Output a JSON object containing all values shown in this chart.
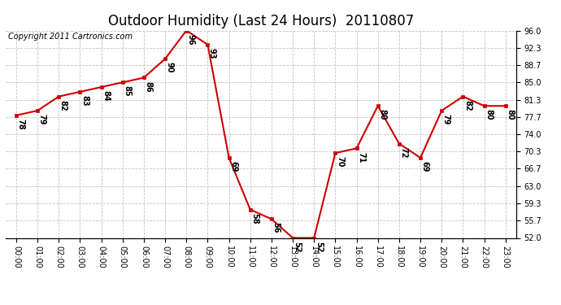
{
  "title": "Outdoor Humidity (Last 24 Hours)  20110807",
  "copyright": "Copyright 2011 Cartronics.com",
  "hours": [
    0,
    1,
    2,
    3,
    4,
    5,
    6,
    7,
    8,
    9,
    10,
    11,
    12,
    13,
    14,
    15,
    16,
    17,
    18,
    19,
    20,
    21,
    22,
    23
  ],
  "values": [
    78,
    79,
    82,
    83,
    84,
    85,
    86,
    90,
    96,
    93,
    69,
    58,
    56,
    52,
    52,
    70,
    71,
    80,
    72,
    69,
    79,
    82,
    80,
    80
  ],
  "xlabels": [
    "00:00",
    "01:00",
    "02:00",
    "03:00",
    "04:00",
    "05:00",
    "06:00",
    "07:00",
    "08:00",
    "09:00",
    "10:00",
    "11:00",
    "12:00",
    "13:00",
    "14:00",
    "15:00",
    "16:00",
    "17:00",
    "18:00",
    "19:00",
    "20:00",
    "21:00",
    "22:00",
    "23:00"
  ],
  "ylim": [
    52.0,
    96.0
  ],
  "yticks": [
    52.0,
    55.7,
    59.3,
    63.0,
    66.7,
    70.3,
    74.0,
    77.7,
    81.3,
    85.0,
    88.7,
    92.3,
    96.0
  ],
  "ytick_labels": [
    "52.0",
    "55.7",
    "59.3",
    "63.0",
    "66.7",
    "70.3",
    "74.0",
    "77.7",
    "81.3",
    "85.0",
    "88.7",
    "92.3",
    "96.0"
  ],
  "line_color": "#cc0000",
  "marker_color": "#cc0000",
  "bg_color": "#ffffff",
  "grid_color": "#bbbbbb",
  "title_fontsize": 12,
  "tick_fontsize": 7,
  "copyright_fontsize": 7,
  "annot_fontsize": 7
}
